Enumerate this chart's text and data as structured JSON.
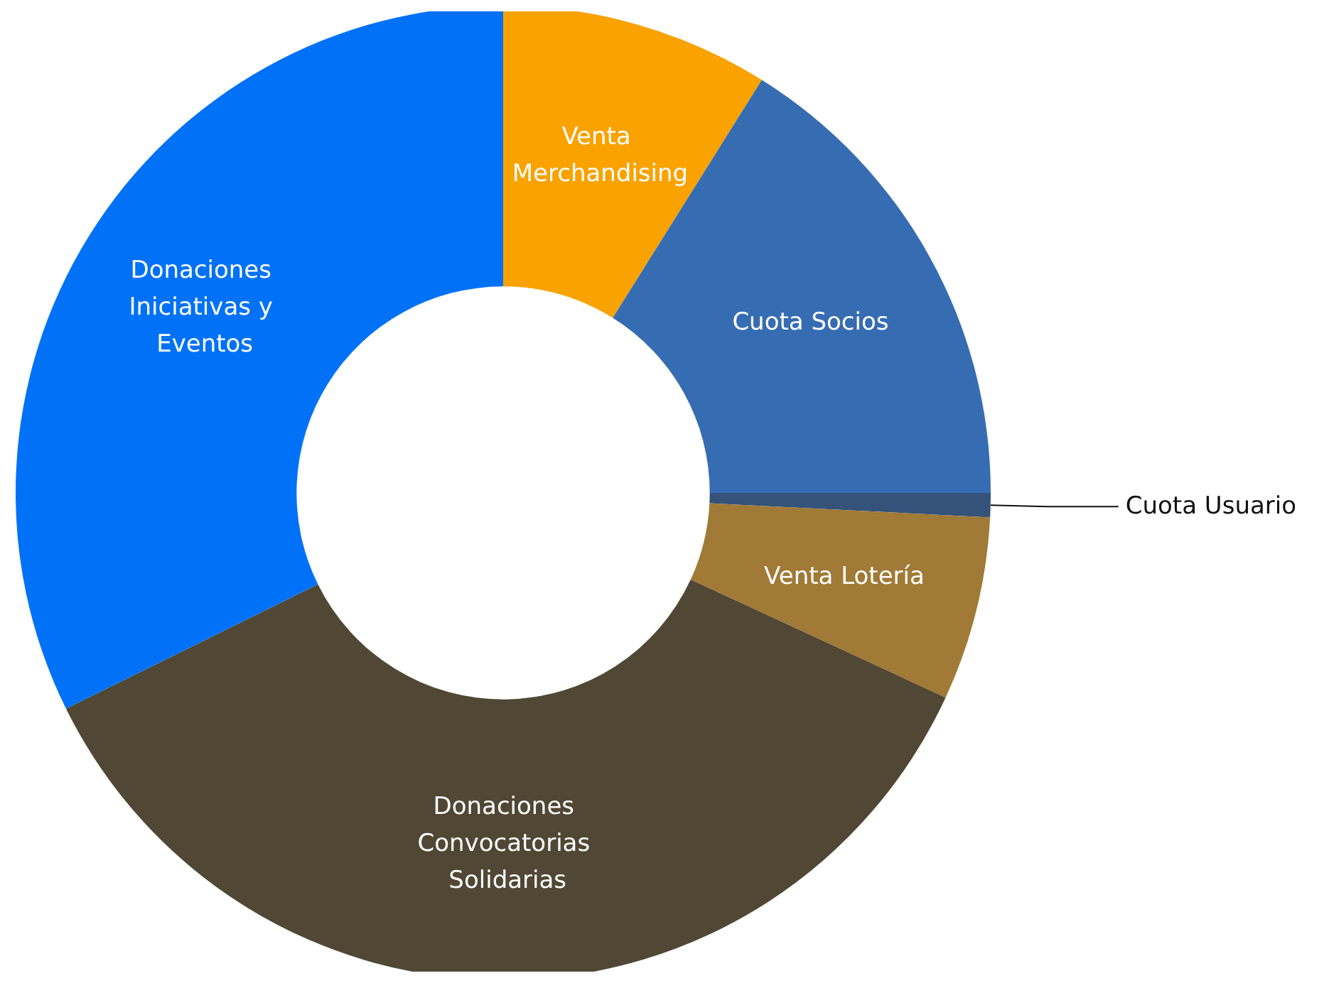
{
  "chart_data": {
    "type": "donut",
    "categories": [
      "Venta Merchandising",
      "Cuota Socios",
      "Cuota Usuario",
      "Venta Lotería",
      "Donaciones Convocatorias Solidarias",
      "Donaciones Iniciativas y Eventos"
    ],
    "values": [
      8.9,
      16.1,
      0.8,
      6.1,
      35.8,
      32.3
    ],
    "colors": [
      "#f9a200",
      "#366cb2",
      "#34527a",
      "#a07a36",
      "#504734",
      "#0172f7"
    ],
    "legend": false
  }
}
